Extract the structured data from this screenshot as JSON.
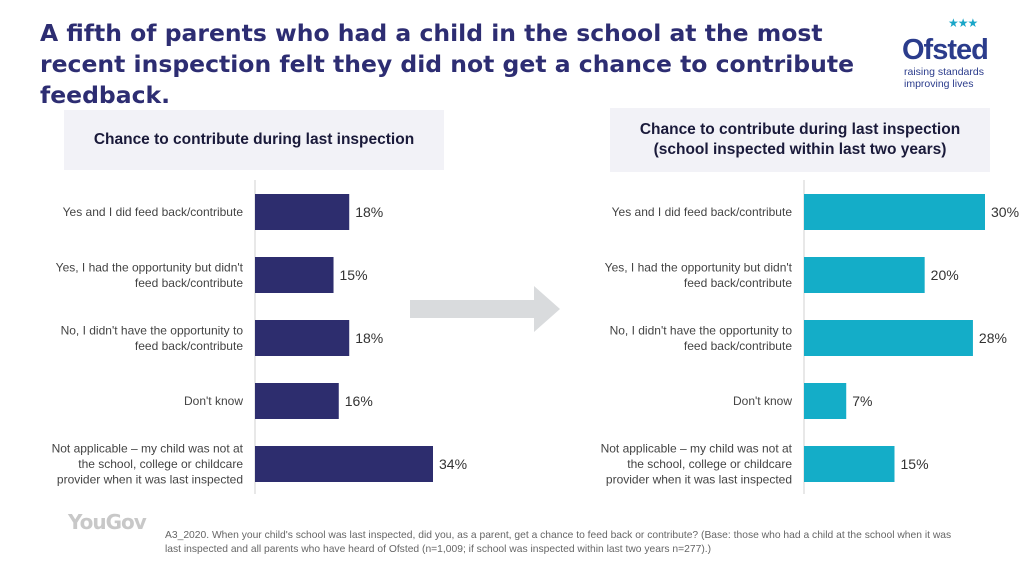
{
  "title": "A fifth of parents who had a child in the school at the most recent inspection felt they did not get a chance to contribute feedback.",
  "logo": {
    "name": "Ofsted",
    "tagline_1": "raising standards",
    "tagline_2": "improving lives"
  },
  "source_brand": "YouGov",
  "footnote": "A3_2020. When your child's school was last inspected, did you, as a parent, get a chance to feed back or contribute? (Base: those who had a child at the school when it was last inspected and all parents who have heard of Ofsted (n=1,009; if school was inspected within last two years n=277).)",
  "colors": {
    "left_bar": "#2d2d6e",
    "right_bar": "#14adc8",
    "arrow": "#d9dbdd",
    "title": "#2d2d72"
  },
  "chart_data": [
    {
      "type": "bar",
      "orientation": "horizontal",
      "title": "Chance to contribute during last inspection",
      "categories": [
        [
          "Yes and I did feed back/contribute"
        ],
        [
          "Yes, I had the opportunity but didn't",
          "feed back/contribute"
        ],
        [
          "No, I didn't have the opportunity to",
          "feed back/contribute"
        ],
        [
          "Don't know"
        ],
        [
          "Not applicable – my child was not at",
          "the school, college or childcare",
          "provider when it was last inspected"
        ]
      ],
      "values": [
        18,
        15,
        18,
        16,
        34
      ],
      "value_suffix": "%",
      "xlim": [
        0,
        34
      ],
      "grid": false,
      "color": "#2d2d6e"
    },
    {
      "type": "bar",
      "orientation": "horizontal",
      "title": "Chance to contribute during last inspection (school inspected within last two years)",
      "categories": [
        [
          "Yes and I did feed back/contribute"
        ],
        [
          "Yes, I had the opportunity but didn't",
          "feed back/contribute"
        ],
        [
          "No, I didn't have the opportunity to",
          "feed back/contribute"
        ],
        [
          "Don't know"
        ],
        [
          "Not applicable – my child was not at",
          "the school, college or childcare",
          "provider when it was last inspected"
        ]
      ],
      "values": [
        30,
        20,
        28,
        7,
        15
      ],
      "value_suffix": "%",
      "xlim": [
        0,
        30
      ],
      "grid": false,
      "color": "#14adc8"
    }
  ]
}
